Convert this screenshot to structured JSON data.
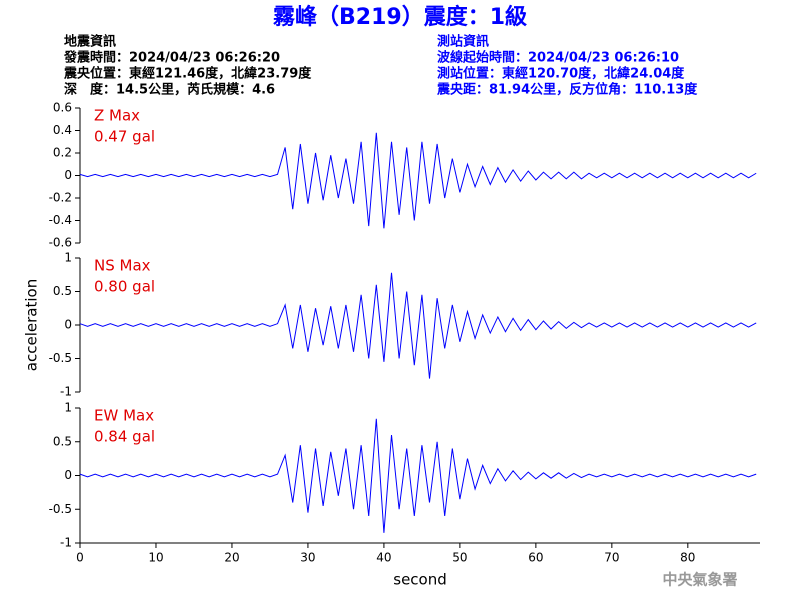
{
  "title": "霧峰（B219）震度：1級",
  "info_left": [
    "地震資訊",
    "發震時間：2024/04/23 06:26:20",
    "震央位置：東經121.46度，北緯23.79度",
    "深　度：14.5公里，芮氏規模：4.6"
  ],
  "info_right": [
    "測站資訊",
    "波線起始時間：2024/04/23 06:26:10",
    "測站位置：東經120.70度，北緯24.04度",
    "震央距：81.94公里，反方位角：110.13度"
  ],
  "footer": "中央氣象署",
  "chart_data": [
    {
      "type": "line",
      "annotations": [
        "Z Max",
        "0.47 gal"
      ],
      "color": "#0000ff",
      "xlim": [
        0,
        89.5
      ],
      "ylim": [
        -0.6,
        0.6
      ],
      "yticks": [
        0.6,
        0.4,
        0.2,
        0,
        -0.2,
        -0.4,
        -0.6
      ],
      "x": [
        0,
        1,
        2,
        3,
        4,
        5,
        6,
        7,
        8,
        9,
        10,
        11,
        12,
        13,
        14,
        15,
        16,
        17,
        18,
        19,
        20,
        21,
        22,
        23,
        24,
        25,
        26,
        27,
        28,
        29,
        30,
        31,
        32,
        33,
        34,
        35,
        36,
        37,
        38,
        39,
        40,
        41,
        42,
        43,
        44,
        45,
        46,
        47,
        48,
        49,
        50,
        51,
        52,
        53,
        54,
        55,
        56,
        57,
        58,
        59,
        60,
        61,
        62,
        63,
        64,
        65,
        66,
        67,
        68,
        69,
        70,
        71,
        72,
        73,
        74,
        75,
        76,
        77,
        78,
        79,
        80,
        81,
        82,
        83,
        84,
        85,
        86,
        87,
        88,
        89
      ],
      "values": [
        0.01,
        -0.01,
        0.01,
        -0.01,
        0.01,
        -0.01,
        0.01,
        -0.01,
        0.01,
        -0.01,
        0.01,
        -0.01,
        0.01,
        -0.01,
        0.01,
        -0.01,
        0.01,
        -0.01,
        0.01,
        -0.01,
        0.01,
        -0.01,
        0.01,
        -0.01,
        0.01,
        -0.01,
        0.01,
        0.25,
        -0.3,
        0.28,
        -0.25,
        0.2,
        -0.22,
        0.18,
        -0.2,
        0.15,
        -0.25,
        0.3,
        -0.45,
        0.38,
        -0.47,
        0.3,
        -0.35,
        0.25,
        -0.4,
        0.3,
        -0.25,
        0.28,
        -0.2,
        0.15,
        -0.15,
        0.1,
        -0.1,
        0.08,
        -0.08,
        0.07,
        -0.06,
        0.05,
        -0.05,
        0.04,
        -0.04,
        0.03,
        -0.03,
        0.03,
        -0.03,
        0.03,
        -0.03,
        0.02,
        -0.02,
        0.02,
        -0.02,
        0.02,
        -0.02,
        0.02,
        -0.02,
        0.02,
        -0.02,
        0.02,
        -0.02,
        0.02,
        -0.02,
        0.02,
        -0.02,
        0.02,
        -0.02,
        0.02,
        -0.02,
        0.02,
        -0.02,
        0.02
      ]
    },
    {
      "type": "line",
      "annotations": [
        "NS Max",
        "0.80 gal"
      ],
      "ylabel": "acceleration",
      "color": "#0000ff",
      "xlim": [
        0,
        89.5
      ],
      "ylim": [
        -1,
        1
      ],
      "yticks": [
        1,
        0.5,
        0,
        -0.5,
        -1
      ],
      "x": [
        0,
        1,
        2,
        3,
        4,
        5,
        6,
        7,
        8,
        9,
        10,
        11,
        12,
        13,
        14,
        15,
        16,
        17,
        18,
        19,
        20,
        21,
        22,
        23,
        24,
        25,
        26,
        27,
        28,
        29,
        30,
        31,
        32,
        33,
        34,
        35,
        36,
        37,
        38,
        39,
        40,
        41,
        42,
        43,
        44,
        45,
        46,
        47,
        48,
        49,
        50,
        51,
        52,
        53,
        54,
        55,
        56,
        57,
        58,
        59,
        60,
        61,
        62,
        63,
        64,
        65,
        66,
        67,
        68,
        69,
        70,
        71,
        72,
        73,
        74,
        75,
        76,
        77,
        78,
        79,
        80,
        81,
        82,
        83,
        84,
        85,
        86,
        87,
        88,
        89
      ],
      "values": [
        0.02,
        -0.02,
        0.02,
        -0.02,
        0.02,
        -0.02,
        0.02,
        -0.02,
        0.02,
        -0.02,
        0.02,
        -0.02,
        0.02,
        -0.02,
        0.02,
        -0.02,
        0.02,
        -0.02,
        0.02,
        -0.02,
        0.02,
        -0.02,
        0.02,
        -0.02,
        0.02,
        -0.02,
        0.02,
        0.3,
        -0.35,
        0.3,
        -0.4,
        0.25,
        -0.3,
        0.28,
        -0.35,
        0.3,
        -0.4,
        0.45,
        -0.5,
        0.6,
        -0.55,
        0.78,
        -0.5,
        0.5,
        -0.6,
        0.45,
        -0.8,
        0.4,
        -0.35,
        0.3,
        -0.25,
        0.2,
        -0.2,
        0.15,
        -0.12,
        0.12,
        -0.1,
        0.1,
        -0.08,
        0.08,
        -0.07,
        0.06,
        -0.06,
        0.05,
        -0.05,
        0.04,
        -0.04,
        0.03,
        -0.03,
        0.03,
        -0.03,
        0.03,
        -0.03,
        0.03,
        -0.03,
        0.03,
        -0.03,
        0.03,
        -0.03,
        0.03,
        -0.03,
        0.03,
        -0.03,
        0.03,
        -0.03,
        0.03,
        -0.03,
        0.03,
        -0.03,
        0.03
      ]
    },
    {
      "type": "line",
      "annotations": [
        "EW Max",
        "0.84 gal"
      ],
      "xlabel": "second",
      "color": "#0000ff",
      "xlim": [
        0,
        89.5
      ],
      "ylim": [
        -1,
        1
      ],
      "yticks": [
        1,
        0.5,
        0,
        -0.5,
        -1
      ],
      "xticks": [
        0,
        10,
        20,
        30,
        40,
        50,
        60,
        70,
        80
      ],
      "x": [
        0,
        1,
        2,
        3,
        4,
        5,
        6,
        7,
        8,
        9,
        10,
        11,
        12,
        13,
        14,
        15,
        16,
        17,
        18,
        19,
        20,
        21,
        22,
        23,
        24,
        25,
        26,
        27,
        28,
        29,
        30,
        31,
        32,
        33,
        34,
        35,
        36,
        37,
        38,
        39,
        40,
        41,
        42,
        43,
        44,
        45,
        46,
        47,
        48,
        49,
        50,
        51,
        52,
        53,
        54,
        55,
        56,
        57,
        58,
        59,
        60,
        61,
        62,
        63,
        64,
        65,
        66,
        67,
        68,
        69,
        70,
        71,
        72,
        73,
        74,
        75,
        76,
        77,
        78,
        79,
        80,
        81,
        82,
        83,
        84,
        85,
        86,
        87,
        88,
        89
      ],
      "values": [
        0.02,
        -0.02,
        0.02,
        -0.02,
        0.02,
        -0.02,
        0.02,
        -0.02,
        0.02,
        -0.02,
        0.02,
        -0.02,
        0.02,
        -0.02,
        0.02,
        -0.02,
        0.02,
        -0.02,
        0.02,
        -0.02,
        0.02,
        -0.02,
        0.02,
        -0.02,
        0.02,
        -0.02,
        0.02,
        0.3,
        -0.4,
        0.45,
        -0.55,
        0.4,
        -0.45,
        0.35,
        -0.3,
        0.4,
        -0.5,
        0.45,
        -0.6,
        0.84,
        -0.85,
        0.6,
        -0.5,
        0.4,
        -0.6,
        0.45,
        -0.4,
        0.5,
        -0.6,
        0.4,
        -0.35,
        0.25,
        -0.2,
        0.15,
        -0.12,
        0.1,
        -0.08,
        0.07,
        -0.06,
        0.05,
        -0.05,
        0.04,
        -0.04,
        0.04,
        -0.04,
        0.03,
        -0.03,
        0.02,
        -0.02,
        0.02,
        -0.02,
        0.02,
        -0.02,
        0.02,
        -0.02,
        0.02,
        -0.02,
        0.02,
        -0.02,
        0.02,
        -0.02,
        0.02,
        -0.02,
        0.02,
        -0.02,
        0.02,
        -0.02,
        0.02,
        -0.02,
        0.02
      ]
    }
  ]
}
